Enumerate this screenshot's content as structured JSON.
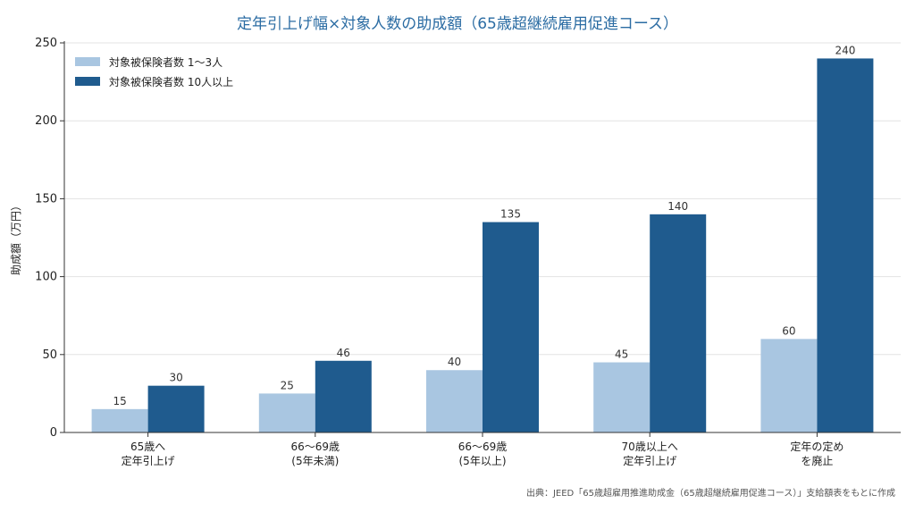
{
  "chart_data": {
    "type": "bar",
    "title": "定年引上げ幅×対象人数の助成額（65歳超継続雇用促進コース）",
    "ylabel": "助成額（万円）",
    "xlabel": "",
    "ylim": [
      0,
      250
    ],
    "yticks": [
      0,
      50,
      100,
      150,
      200,
      250
    ],
    "grid": true,
    "legend_position": "top-left",
    "categories": [
      [
        "65歳へ",
        "定年引上げ"
      ],
      [
        "66〜69歳",
        "(5年未満)"
      ],
      [
        "66〜69歳",
        "(5年以上)"
      ],
      [
        "70歳以上へ",
        "定年引上げ"
      ],
      [
        "定年の定め",
        "を廃止"
      ]
    ],
    "series": [
      {
        "name": "対象被保険者数 1〜3人",
        "color": "#a9c6e1",
        "values": [
          15,
          25,
          40,
          45,
          60
        ]
      },
      {
        "name": "対象被保険者数 10人以上",
        "color": "#1f5b8e",
        "values": [
          30,
          46,
          135,
          140,
          240
        ]
      }
    ]
  },
  "source_note": "出典：JEED「65歳超雇用推進助成金（65歳超継続雇用促進コース）」支給額表をもとに作成"
}
